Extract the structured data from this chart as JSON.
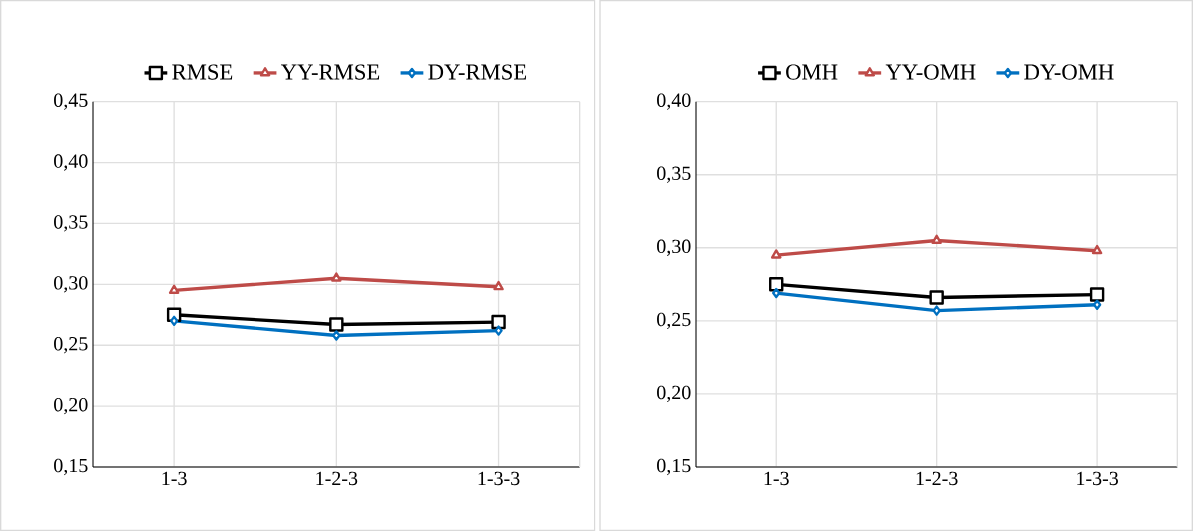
{
  "chart_data": [
    {
      "type": "line",
      "categories": [
        "1-3",
        "1-2-3",
        "1-3-3"
      ],
      "ylim": [
        0.15,
        0.45
      ],
      "yticks": [
        {
          "value": 0.15,
          "label": "0,15"
        },
        {
          "value": 0.2,
          "label": "0,20"
        },
        {
          "value": 0.25,
          "label": "0,25"
        },
        {
          "value": 0.3,
          "label": "0,30"
        },
        {
          "value": 0.35,
          "label": "0,35"
        },
        {
          "value": 0.4,
          "label": "0,40"
        },
        {
          "value": 0.45,
          "label": "0,45"
        }
      ],
      "grid": true,
      "legend": "top",
      "series": [
        {
          "name": "RMSE",
          "color": "#000000",
          "marker": "square",
          "values": [
            0.275,
            0.267,
            0.269
          ]
        },
        {
          "name": "YY-RMSE",
          "color": "#be4b48",
          "marker": "triangle",
          "values": [
            0.295,
            0.305,
            0.298
          ]
        },
        {
          "name": "DY-RMSE",
          "color": "#0070c0",
          "marker": "diamond",
          "values": [
            0.27,
            0.258,
            0.262
          ]
        }
      ]
    },
    {
      "type": "line",
      "categories": [
        "1-3",
        "1-2-3",
        "1-3-3"
      ],
      "ylim": [
        0.15,
        0.4
      ],
      "yticks": [
        {
          "value": 0.15,
          "label": "0,15"
        },
        {
          "value": 0.2,
          "label": "0,20"
        },
        {
          "value": 0.25,
          "label": "0,25"
        },
        {
          "value": 0.3,
          "label": "0,30"
        },
        {
          "value": 0.35,
          "label": "0,35"
        },
        {
          "value": 0.4,
          "label": "0,40"
        }
      ],
      "grid": true,
      "legend": "top",
      "series": [
        {
          "name": "OMH",
          "color": "#000000",
          "marker": "square",
          "values": [
            0.275,
            0.266,
            0.268
          ]
        },
        {
          "name": "YY-OMH",
          "color": "#be4b48",
          "marker": "triangle",
          "values": [
            0.295,
            0.305,
            0.298
          ]
        },
        {
          "name": "DY-OMH",
          "color": "#0070c0",
          "marker": "diamond",
          "values": [
            0.269,
            0.257,
            0.261
          ]
        }
      ]
    }
  ]
}
